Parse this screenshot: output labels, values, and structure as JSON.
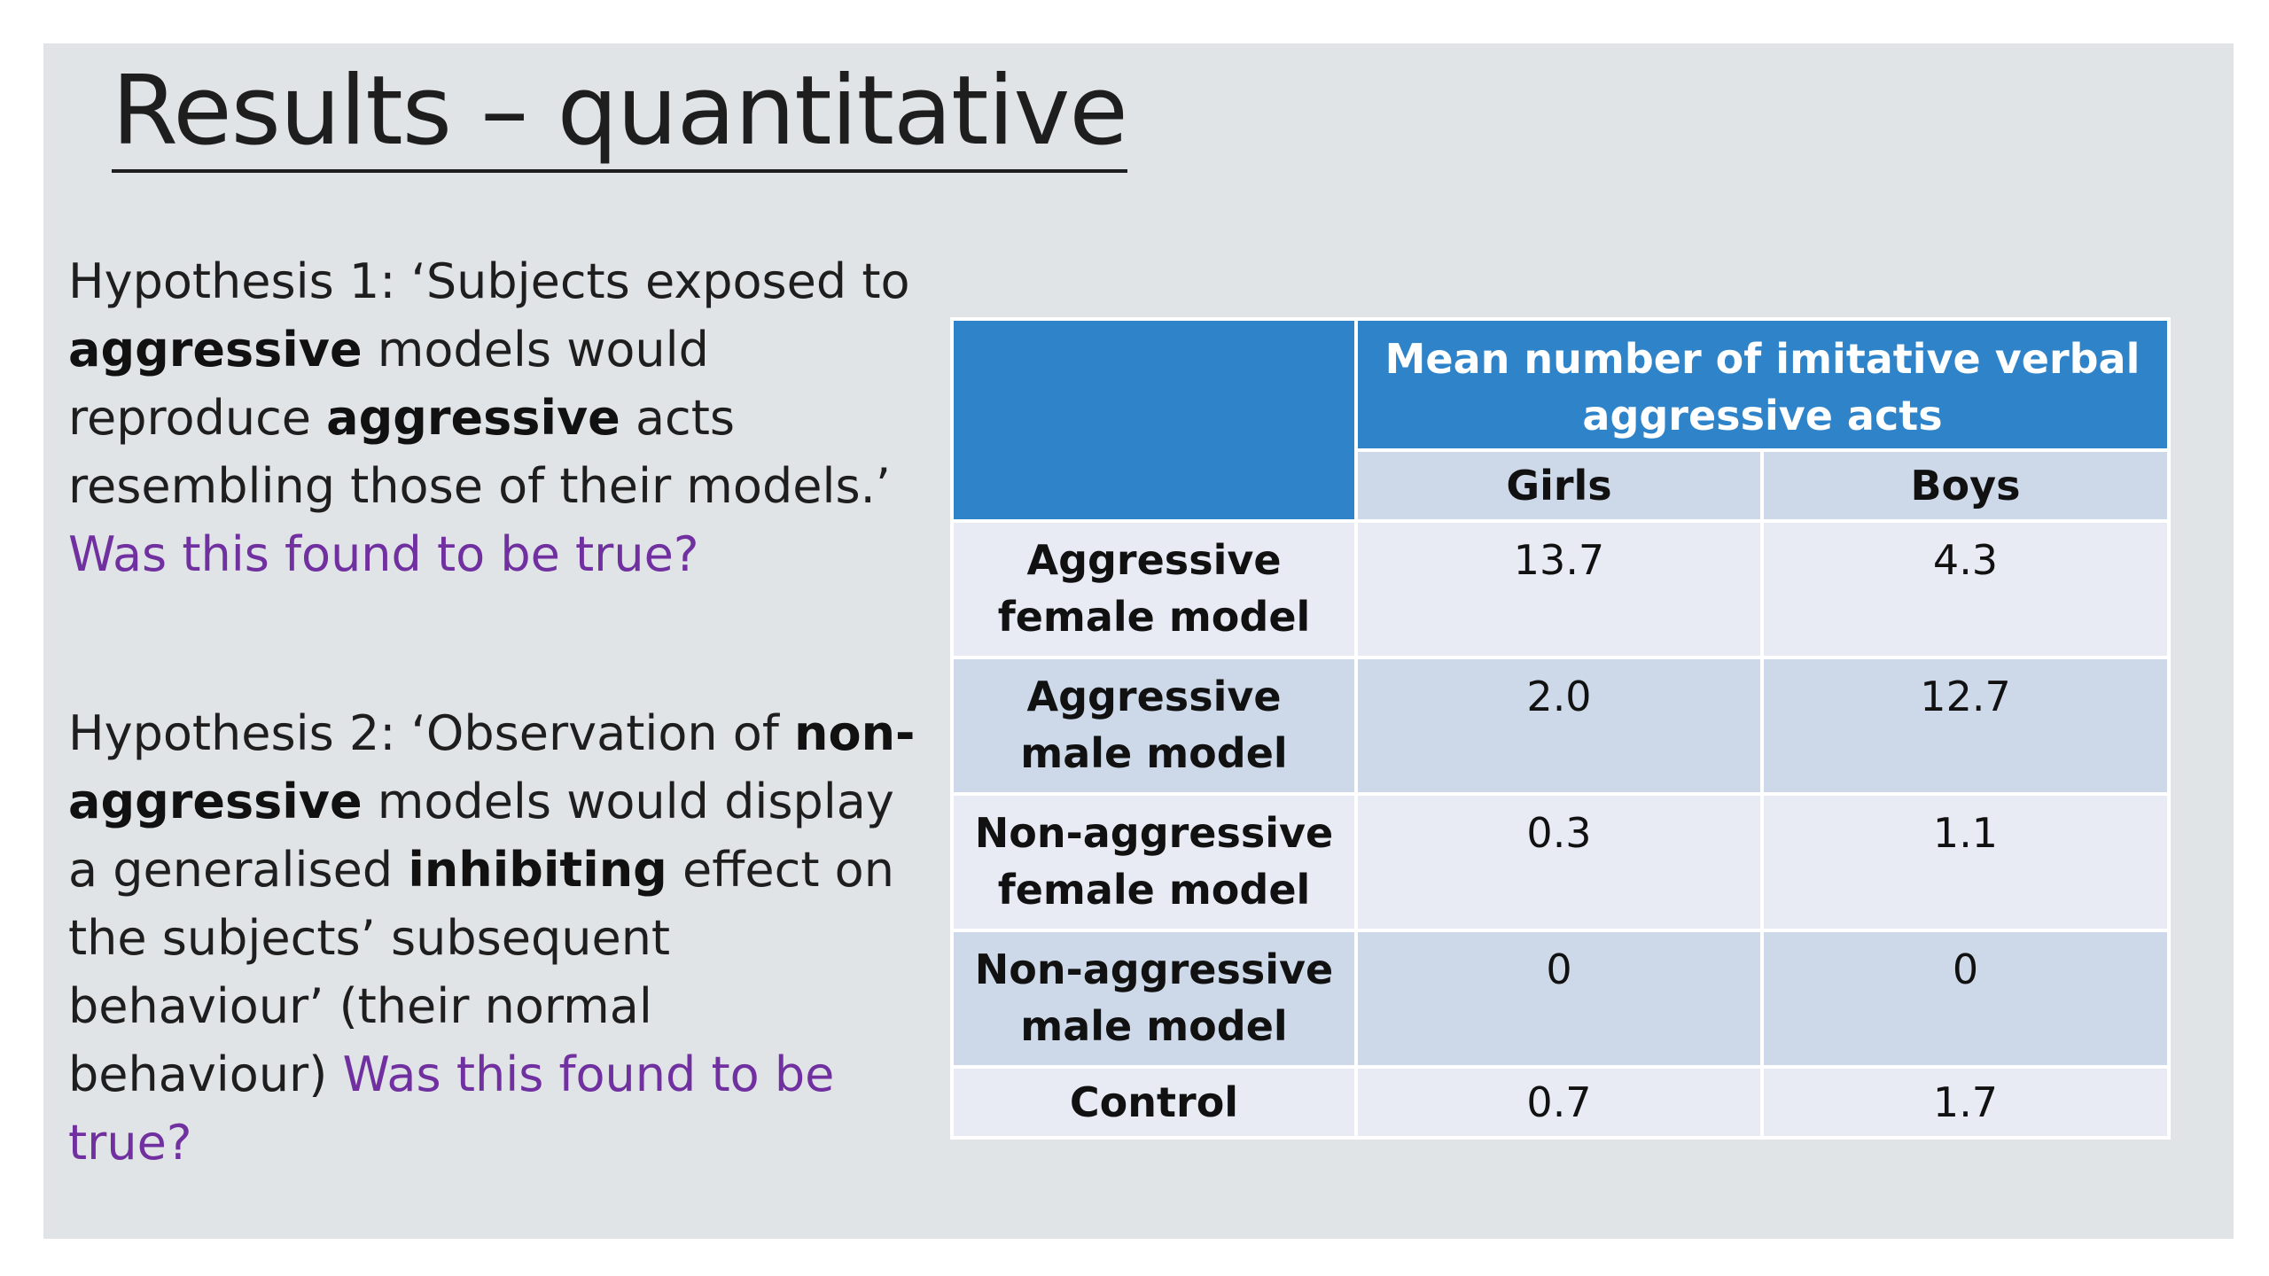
{
  "title": "Results – quantitative",
  "hypothesis1": {
    "t1": "Hypothesis 1: ‘Subjects exposed to ",
    "b1": "aggressive",
    "t2": " models would reproduce ",
    "b2": "aggressive",
    "t3": " acts resembling those of their models.’ ",
    "question": "Was this found to be true?"
  },
  "hypothesis2": {
    "t1": "Hypothesis 2: ‘Observation of ",
    "b1": "non-aggressive",
    "t2": " models would display a generalised ",
    "b2": "inhibiting",
    "t3": " effect on the subjects’ subsequent behaviour’ (their normal behaviour) ",
    "question": "Was this found to be true?"
  },
  "table": {
    "header": "Mean number of imitative verbal aggressive acts",
    "columns": [
      "Girls",
      "Boys"
    ],
    "rows": [
      {
        "label": "Aggressive female model",
        "girls": "13.7",
        "boys": "4.3"
      },
      {
        "label": "Aggressive male model",
        "girls": "2.0",
        "boys": "12.7"
      },
      {
        "label": "Non-aggressive female model",
        "girls": "0.3",
        "boys": "1.1"
      },
      {
        "label": "Non-aggressive male model",
        "girls": "0",
        "boys": "0"
      },
      {
        "label": "Control",
        "girls": "0.7",
        "boys": "1.7"
      }
    ]
  },
  "colors": {
    "header_blue": "#2e83c9",
    "question_purple": "#7030a0",
    "row_light": "#e8ebf4",
    "row_dark": "#cdd9e8",
    "slide_background": "#e1e4e6"
  }
}
